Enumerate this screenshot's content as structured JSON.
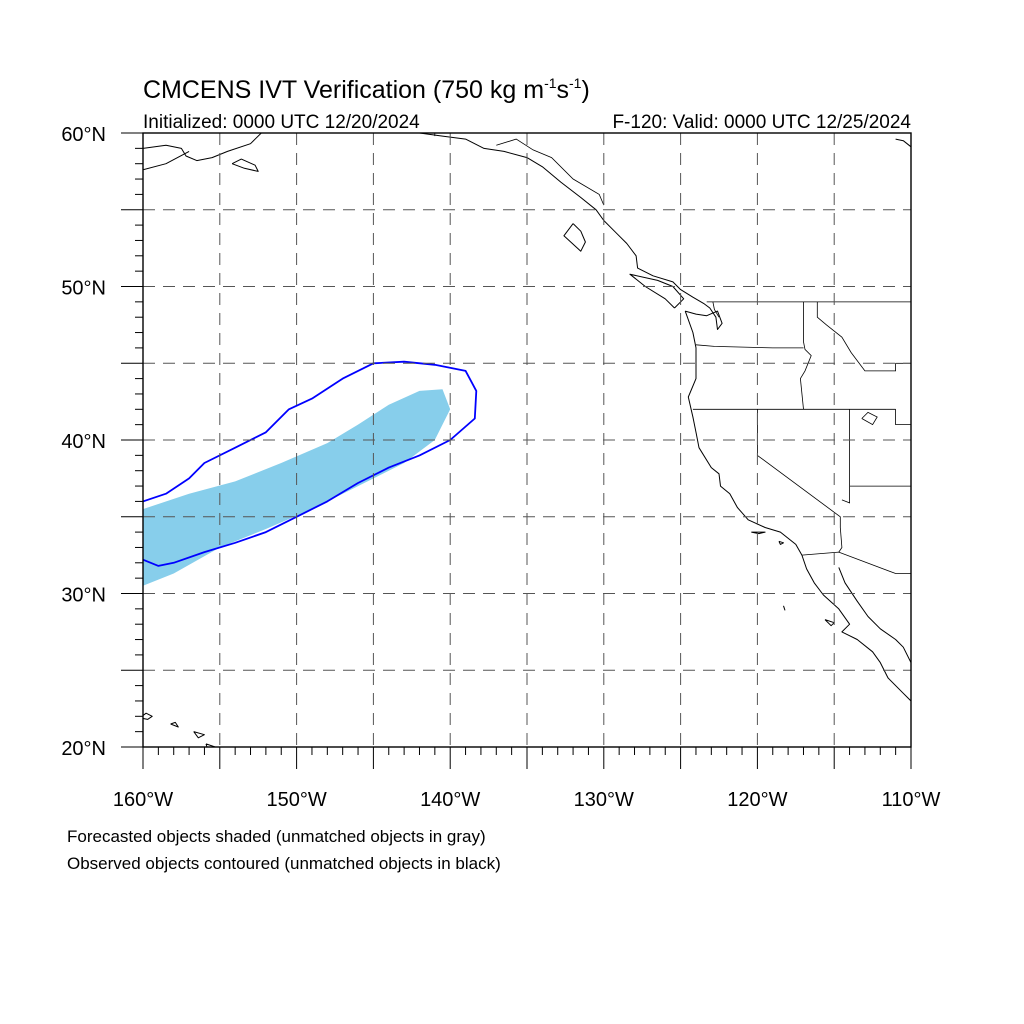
{
  "title_main": "CMCENS IVT Verification (750 kg m",
  "title_sup1": "-1",
  "title_s": "s",
  "title_sup2": "-1",
  "title_close": ")",
  "init_text": "Initialized: 0000 UTC 12/20/2024",
  "valid_text": "F-120: Valid: 0000 UTC 12/25/2024",
  "caption_line1": "Forecasted objects shaded (unmatched objects in gray)",
  "caption_line2": "Observed objects contoured (unmatched objects in black)",
  "lat_labels": [
    {
      "lat": 60,
      "text": "60°N"
    },
    {
      "lat": 50,
      "text": "50°N"
    },
    {
      "lat": 40,
      "text": "40°N"
    },
    {
      "lat": 30,
      "text": "30°N"
    },
    {
      "lat": 20,
      "text": "20°N"
    }
  ],
  "lon_labels": [
    {
      "lon": -160,
      "text": "160°W"
    },
    {
      "lon": -150,
      "text": "150°W"
    },
    {
      "lon": -140,
      "text": "140°W"
    },
    {
      "lon": -130,
      "text": "130°W"
    },
    {
      "lon": -120,
      "text": "120°W"
    },
    {
      "lon": -110,
      "text": "110°W"
    }
  ],
  "map_extent": {
    "lon_min": -160,
    "lon_max": -110,
    "lat_min": 20,
    "lat_max": 60
  },
  "grid_lons": [
    -155,
    -150,
    -145,
    -140,
    -135,
    -130,
    -125,
    -120,
    -115
  ],
  "grid_lats": [
    55,
    50,
    45,
    40,
    35,
    30,
    25
  ],
  "colors": {
    "forecast_fill": "#87ceeb",
    "observed_contour": "#0000ff",
    "coast": "#000000",
    "grid": "#555555"
  },
  "forecast_object": [
    [
      -160,
      35.5
    ],
    [
      -157,
      36.5
    ],
    [
      -154,
      37.3
    ],
    [
      -151,
      38.5
    ],
    [
      -148,
      39.8
    ],
    [
      -146,
      41.0
    ],
    [
      -144,
      42.3
    ],
    [
      -142,
      43.2
    ],
    [
      -140.5,
      43.3
    ],
    [
      -140,
      42.0
    ],
    [
      -141,
      40.0
    ],
    [
      -143,
      38.5
    ],
    [
      -146,
      37.0
    ],
    [
      -149,
      35.5
    ],
    [
      -152,
      34.2
    ],
    [
      -155,
      33.0
    ],
    [
      -158,
      31.3
    ],
    [
      -160,
      30.5
    ]
  ],
  "observed_object": [
    [
      -160,
      36.0
    ],
    [
      -158.5,
      36.5
    ],
    [
      -157,
      37.5
    ],
    [
      -156,
      38.5
    ],
    [
      -154,
      39.5
    ],
    [
      -152,
      40.5
    ],
    [
      -150.5,
      42.0
    ],
    [
      -149,
      42.7
    ],
    [
      -147,
      44.0
    ],
    [
      -145,
      45.0
    ],
    [
      -143,
      45.1
    ],
    [
      -141,
      44.9
    ],
    [
      -139,
      44.5
    ],
    [
      -138.3,
      43.2
    ],
    [
      -138.4,
      41.4
    ],
    [
      -140,
      40.0
    ],
    [
      -142,
      39.0
    ],
    [
      -144,
      38.2
    ],
    [
      -146,
      37.2
    ],
    [
      -148,
      36.0
    ],
    [
      -150,
      35.0
    ],
    [
      -152,
      34.0
    ],
    [
      -154,
      33.3
    ],
    [
      -156,
      32.7
    ],
    [
      -158,
      32.0
    ],
    [
      -159,
      31.8
    ],
    [
      -160,
      32.2
    ]
  ],
  "coastlines": [
    [
      [
        -124.7,
        48.4
      ],
      [
        -124.2,
        47.0
      ],
      [
        -124.0,
        46.0
      ],
      [
        -124.0,
        44.0
      ],
      [
        -124.5,
        42.8
      ],
      [
        -124.2,
        41.5
      ],
      [
        -124.0,
        40.5
      ],
      [
        -123.8,
        39.5
      ],
      [
        -123.0,
        38.2
      ],
      [
        -122.5,
        37.8
      ],
      [
        -122.4,
        37.0
      ],
      [
        -121.8,
        36.5
      ],
      [
        -121.3,
        35.6
      ],
      [
        -120.6,
        34.8
      ],
      [
        -119.5,
        34.3
      ],
      [
        -118.5,
        34.0
      ],
      [
        -117.5,
        33.2
      ],
      [
        -117.1,
        32.5
      ],
      [
        -116.8,
        31.6
      ],
      [
        -116.3,
        30.7
      ],
      [
        -115.7,
        29.9
      ],
      [
        -114.7,
        29.0
      ],
      [
        -114.0,
        28.0
      ],
      [
        -114.5,
        27.5
      ],
      [
        -113.5,
        27.0
      ],
      [
        -112.5,
        26.2
      ],
      [
        -112.0,
        25.5
      ],
      [
        -111.5,
        24.5
      ],
      [
        -110.5,
        23.5
      ],
      [
        -110.0,
        23.0
      ]
    ],
    [
      [
        -114.7,
        31.7
      ],
      [
        -114.3,
        30.7
      ],
      [
        -113.5,
        29.5
      ],
      [
        -112.8,
        28.5
      ],
      [
        -112.0,
        27.7
      ],
      [
        -111.0,
        27.0
      ],
      [
        -110.5,
        26.5
      ],
      [
        -110.0,
        25.5
      ]
    ],
    [
      [
        -124.7,
        48.4
      ],
      [
        -124.0,
        48.2
      ],
      [
        -123.3,
        48.1
      ],
      [
        -122.6,
        48.4
      ],
      [
        -122.3,
        47.6
      ],
      [
        -122.6,
        47.2
      ],
      [
        -122.7,
        48.0
      ],
      [
        -123.1,
        48.6
      ],
      [
        -123.5,
        48.9
      ],
      [
        -124.2,
        49.3
      ],
      [
        -125.0,
        49.8
      ],
      [
        -125.5,
        50.3
      ],
      [
        -126.8,
        50.7
      ],
      [
        -127.8,
        51.2
      ],
      [
        -127.9,
        52.0
      ],
      [
        -128.5,
        52.8
      ],
      [
        -129.2,
        53.5
      ],
      [
        -130.0,
        54.3
      ],
      [
        -130.5,
        55.0
      ],
      [
        -131.5,
        55.8
      ],
      [
        -132.8,
        56.8
      ],
      [
        -134.0,
        57.8
      ],
      [
        -135.0,
        58.4
      ],
      [
        -136.5,
        58.8
      ],
      [
        -137.8,
        59.0
      ],
      [
        -139.0,
        59.6
      ],
      [
        -140.5,
        59.8
      ],
      [
        -142.0,
        60.0
      ]
    ],
    [
      [
        -132.0,
        54.1
      ],
      [
        -132.6,
        53.3
      ],
      [
        -131.5,
        52.3
      ],
      [
        -131.2,
        52.9
      ],
      [
        -131.5,
        53.6
      ],
      [
        -132.0,
        54.1
      ]
    ],
    [
      [
        -125.4,
        48.6
      ],
      [
        -124.8,
        49.2
      ],
      [
        -125.5,
        50.0
      ],
      [
        -126.5,
        50.4
      ],
      [
        -128.3,
        50.8
      ],
      [
        -127.3,
        50.0
      ],
      [
        -126.0,
        49.2
      ],
      [
        -125.4,
        48.6
      ]
    ],
    [
      [
        -160.0,
        59.0
      ],
      [
        -158.5,
        59.2
      ],
      [
        -157.5,
        59.0
      ],
      [
        -157.2,
        58.5
      ],
      [
        -156.5,
        58.2
      ],
      [
        -155.5,
        58.4
      ],
      [
        -154.5,
        58.8
      ],
      [
        -153.0,
        59.3
      ],
      [
        -152.3,
        60.0
      ]
    ],
    [
      [
        -160.0,
        57.6
      ],
      [
        -158.5,
        58.0
      ],
      [
        -157.0,
        58.8
      ]
    ],
    [
      [
        -154.2,
        58.0
      ],
      [
        -153.4,
        57.7
      ],
      [
        -152.5,
        57.5
      ],
      [
        -152.7,
        57.9
      ],
      [
        -153.6,
        58.3
      ],
      [
        -154.2,
        58.0
      ]
    ],
    [
      [
        -160.2,
        21.9
      ],
      [
        -159.8,
        22.2
      ],
      [
        -159.4,
        22.0
      ],
      [
        -159.7,
        21.8
      ],
      [
        -160.2,
        21.9
      ]
    ],
    [
      [
        -158.2,
        21.5
      ],
      [
        -157.7,
        21.3
      ],
      [
        -157.9,
        21.6
      ],
      [
        -158.2,
        21.5
      ]
    ],
    [
      [
        -156.7,
        21.0
      ],
      [
        -156.0,
        20.8
      ],
      [
        -156.4,
        20.6
      ],
      [
        -156.7,
        21.0
      ]
    ],
    [
      [
        -155.9,
        20.2
      ],
      [
        -155.0,
        19.9
      ],
      [
        -154.8,
        19.5
      ],
      [
        -155.5,
        19.0
      ],
      [
        -155.9,
        20.2
      ]
    ],
    [
      [
        -120.4,
        34.0
      ],
      [
        -119.5,
        34.0
      ],
      [
        -119.9,
        33.9
      ],
      [
        -120.4,
        34.0
      ]
    ],
    [
      [
        -118.6,
        33.4
      ],
      [
        -118.3,
        33.3
      ],
      [
        -118.5,
        33.2
      ],
      [
        -118.6,
        33.4
      ]
    ],
    [
      [
        -115.6,
        28.3
      ],
      [
        -115.0,
        28.1
      ],
      [
        -115.2,
        27.9
      ],
      [
        -115.6,
        28.3
      ]
    ],
    [
      [
        -118.3,
        29.2
      ],
      [
        -118.2,
        28.9
      ]
    ],
    [
      [
        -110.0,
        59.1
      ],
      [
        -110.5,
        59.5
      ],
      [
        -111.0,
        59.6
      ]
    ]
  ],
  "borders": [
    [
      [
        -123.3,
        49.0
      ],
      [
        -110.0,
        49.0
      ]
    ],
    [
      [
        -141.0,
        60.0
      ],
      [
        -141.0,
        59.8
      ]
    ],
    [
      [
        -137.0,
        59.2
      ],
      [
        -135.7,
        59.6
      ],
      [
        -134.6,
        58.9
      ],
      [
        -133.4,
        58.4
      ],
      [
        -132.0,
        57.0
      ],
      [
        -130.3,
        56.0
      ],
      [
        -130.0,
        55.3
      ]
    ],
    [
      [
        -124.2,
        42.0
      ],
      [
        -117.0,
        42.0
      ],
      [
        -111.0,
        42.0
      ]
    ],
    [
      [
        -120.0,
        42.0
      ],
      [
        -120.0,
        39.0
      ],
      [
        -114.6,
        35.0
      ],
      [
        -114.6,
        34.3
      ],
      [
        -114.5,
        33.0
      ],
      [
        -114.7,
        32.7
      ]
    ],
    [
      [
        -117.1,
        32.5
      ],
      [
        -114.7,
        32.7
      ],
      [
        -111.0,
        31.3
      ],
      [
        -110.0,
        31.3
      ]
    ],
    [
      [
        -117.0,
        49.0
      ],
      [
        -117.0,
        46.4
      ],
      [
        -116.9,
        45.9
      ],
      [
        -116.5,
        45.5
      ],
      [
        -116.9,
        44.5
      ],
      [
        -117.2,
        44.0
      ],
      [
        -117.0,
        42.0
      ]
    ],
    [
      [
        -124.0,
        46.2
      ],
      [
        -122.8,
        46.1
      ],
      [
        -119.0,
        46.0
      ],
      [
        -117.0,
        46.0
      ]
    ],
    [
      [
        -116.1,
        49.0
      ],
      [
        -116.1,
        48.0
      ],
      [
        -115.5,
        47.5
      ],
      [
        -114.5,
        46.7
      ],
      [
        -113.9,
        45.7
      ],
      [
        -113.0,
        44.5
      ],
      [
        -112.0,
        44.5
      ],
      [
        -111.0,
        44.5
      ],
      [
        -111.0,
        45.0
      ]
    ],
    [
      [
        -114.0,
        42.0
      ],
      [
        -114.0,
        35.9
      ],
      [
        -114.5,
        36.1
      ]
    ],
    [
      [
        -111.0,
        45.0
      ],
      [
        -110.0,
        45.0
      ]
    ],
    [
      [
        -111.0,
        42.0
      ],
      [
        -111.0,
        41.0
      ],
      [
        -110.0,
        41.0
      ]
    ],
    [
      [
        -114.0,
        37.0
      ],
      [
        -110.0,
        37.0
      ]
    ],
    [
      [
        -113.2,
        41.4
      ],
      [
        -112.5,
        41.0
      ],
      [
        -112.2,
        41.5
      ],
      [
        -112.8,
        41.8
      ],
      [
        -113.2,
        41.4
      ]
    ],
    [
      [
        -122.9,
        49.0
      ],
      [
        -122.8,
        48.5
      ],
      [
        -122.5,
        48.0
      ]
    ]
  ]
}
